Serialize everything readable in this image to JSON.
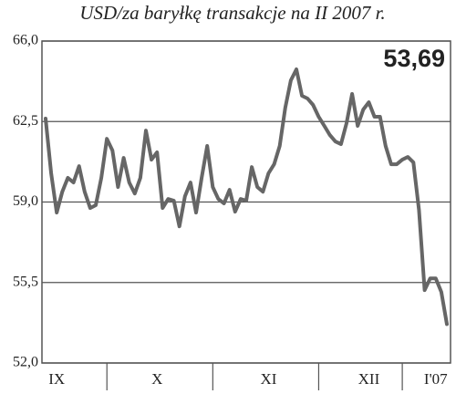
{
  "chart_data": {
    "type": "line",
    "title": "USD/za baryłkę   transakcje na II 2007 r.",
    "annotation": "53,69",
    "categories": [
      null,
      null,
      "IX",
      null,
      null,
      null,
      null,
      null,
      null,
      null,
      null,
      null,
      null,
      null,
      null,
      null,
      null,
      null,
      null,
      null,
      "X",
      null,
      null,
      null,
      null,
      null,
      null,
      null,
      null,
      null,
      null,
      null,
      null,
      null,
      null,
      null,
      null,
      null,
      null,
      null,
      "XI",
      null,
      null,
      null,
      null,
      null,
      null,
      null,
      null,
      null,
      null,
      null,
      null,
      null,
      null,
      null,
      null,
      null,
      "XII",
      null,
      null,
      null,
      null,
      null,
      null,
      null,
      null,
      null,
      null,
      null,
      "I'07",
      null,
      null
    ],
    "values": [
      62.63,
      60.25,
      58.54,
      59.45,
      60.05,
      59.85,
      60.56,
      59.45,
      58.74,
      58.86,
      60.05,
      61.75,
      61.24,
      59.65,
      60.92,
      59.85,
      59.37,
      60.05,
      62.11,
      60.84,
      61.16,
      58.74,
      59.13,
      59.06,
      57.94,
      59.25,
      59.85,
      58.54,
      60.05,
      61.44,
      59.65,
      59.13,
      58.94,
      59.53,
      58.58,
      59.13,
      59.06,
      60.52,
      59.65,
      59.45,
      60.25,
      60.64,
      61.44,
      63.1,
      64.29,
      64.77,
      63.62,
      63.5,
      63.22,
      62.71,
      62.31,
      61.91,
      61.63,
      61.52,
      62.43,
      63.7,
      62.31,
      63.02,
      63.34,
      62.71,
      62.71,
      61.44,
      60.64,
      60.64,
      60.84,
      60.96,
      60.72,
      58.66,
      55.17,
      55.68,
      55.68,
      55.09,
      53.69
    ],
    "color": "#666666",
    "ylim": [
      52,
      66
    ],
    "yticks": [
      {
        "value": 52,
        "label": "52,0"
      },
      {
        "value": 55.5,
        "label": "55,5"
      },
      {
        "value": 59,
        "label": "59,0"
      },
      {
        "value": 62.5,
        "label": "62,5"
      },
      {
        "value": 66,
        "label": "66,0"
      }
    ],
    "grid": true
  }
}
